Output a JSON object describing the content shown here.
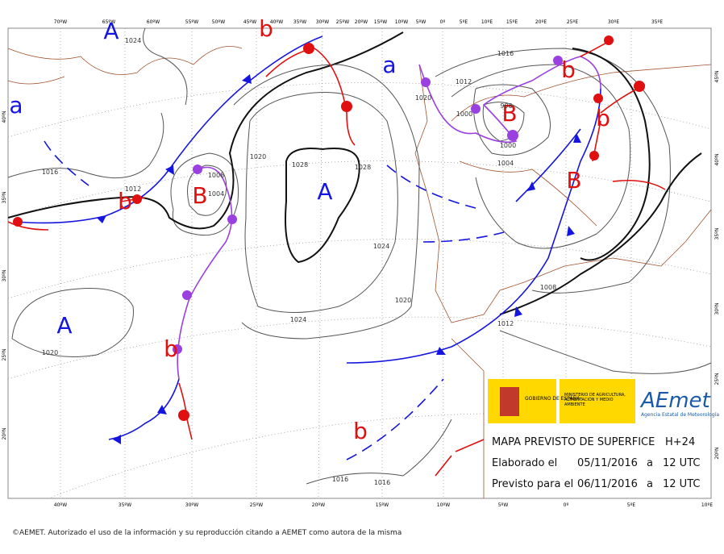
{
  "map": {
    "top_lon_labels": [
      "70ºW",
      "65ºW",
      "60ºW",
      "55ºW",
      "50ºW",
      "45ºW",
      "40ºW",
      "35ºW",
      "30ºW",
      "25ºW",
      "20ºW",
      "15ºW",
      "10ºW",
      "5ºW",
      "0º",
      "5ºE",
      "10ºE",
      "15ºE",
      "20ºE",
      "25ºE",
      "30ºE",
      "35ºE"
    ],
    "bottom_lon_labels": [
      "40ºW",
      "35ºW",
      "30ºW",
      "25ºW",
      "20ºW",
      "15ºW",
      "10ºW",
      "5ºW",
      "0º",
      "5ºE",
      "10ºE"
    ],
    "left_lat_labels": [
      "40ºN",
      "35ºN",
      "30ºN",
      "25ºN",
      "20ºN"
    ],
    "right_lat_labels": [
      "45ºN",
      "40ºN",
      "35ºN",
      "30ºN",
      "25ºN",
      "20ºN"
    ],
    "centers": [
      "A",
      "a",
      "b",
      "a",
      "B",
      "b",
      "b",
      "B",
      "A",
      "B",
      "b",
      "A",
      "b",
      "b"
    ],
    "isobar_labels": [
      "1024",
      "1016",
      "1012",
      "1020",
      "1016",
      "1012",
      "1008",
      "1004",
      "1020",
      "1028",
      "1028",
      "1024",
      "1020",
      "1024",
      "1020",
      "1008",
      "1012",
      "1004",
      "1000",
      "996",
      "1000",
      "1016",
      "1016"
    ]
  },
  "panel": {
    "gov": "GOBIERNO DE ESPAÑA",
    "ministry": "MINISTERIO DE AGRICULTURA, ALIMENTACIÓN Y MEDIO AMBIENTE",
    "brand": "AEmet",
    "agency": "Agencia Estatal de Meteorología",
    "title": "MAPA PREVISTO DE SUPERFICE",
    "horizon": "H+24",
    "made_label": "Elaborado el",
    "made_date": "05/11/2016",
    "made_at": "a",
    "made_time": "12 UTC",
    "valid_label": "Previsto para el",
    "valid_date": "06/11/2016",
    "valid_at": "a",
    "valid_time": "12 UTC"
  },
  "footer": "©AEMET. Autorizado el uso de la información y su reproducción citando a AEMET como autora de la misma"
}
